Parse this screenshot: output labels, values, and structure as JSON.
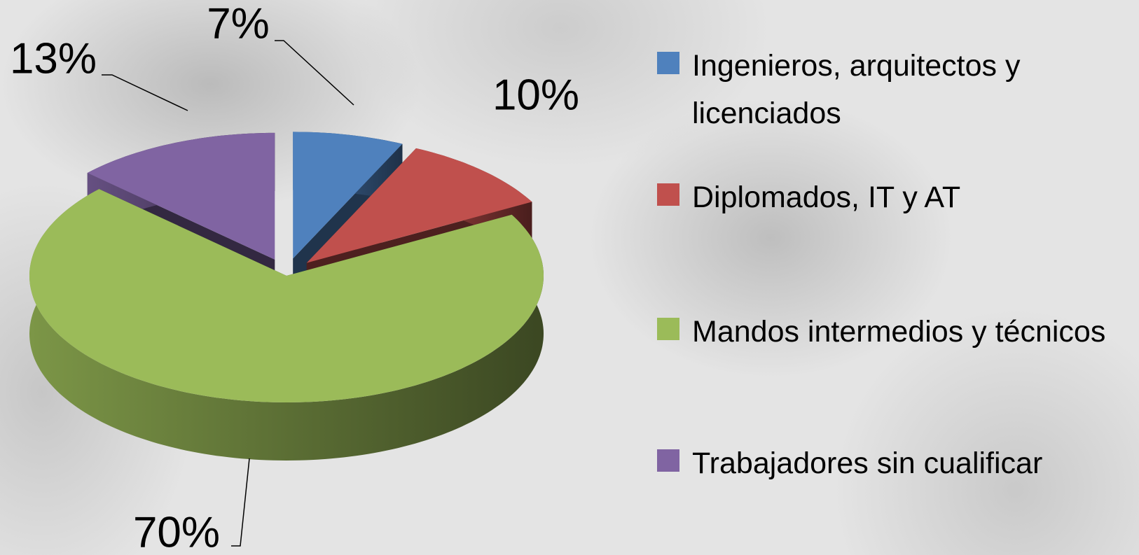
{
  "chart_data": {
    "type": "pie",
    "categories": [
      "Ingenieros, arquitectos y licenciados",
      "Diplomados, IT y AT",
      "Mandos intermedios y técnicos",
      "Trabajadores sin cualificar"
    ],
    "values": [
      7,
      10,
      70,
      13
    ],
    "value_labels": [
      "7%",
      "10%",
      "70%",
      "13%"
    ],
    "colors": [
      "#4f81bd",
      "#c0504d",
      "#9bbb59",
      "#8064a2"
    ],
    "legend": "right"
  }
}
